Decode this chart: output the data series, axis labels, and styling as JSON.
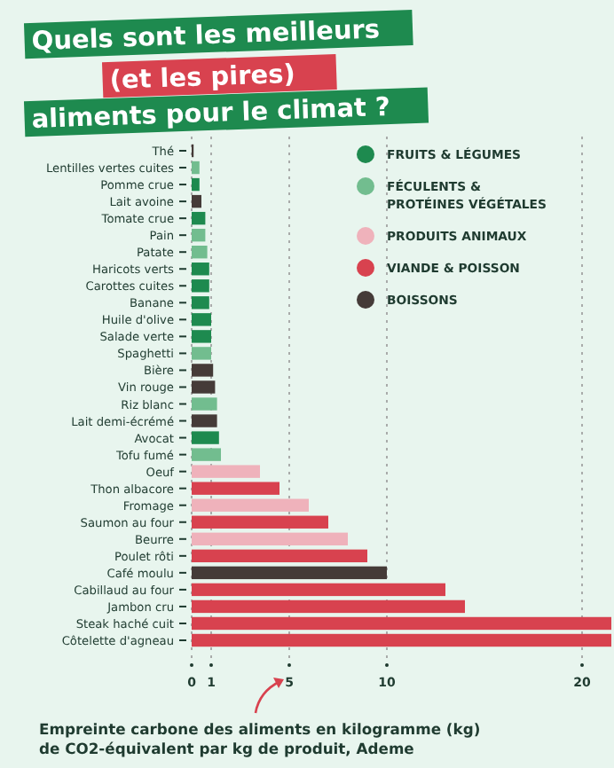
{
  "chart_data": {
    "type": "bar",
    "orientation": "horizontal",
    "title": "Quels sont les meilleurs (et les pires) aliments pour le climat ?",
    "xlabel": "Empreinte carbone des aliments en kilogramme (kg) de CO2-équivalent par kg de produit, Ademe",
    "categories": [
      "Thé",
      "Lentilles vertes cuites",
      "Pomme crue",
      "Lait avoine",
      "Tomate crue",
      "Pain",
      "Patate",
      "Haricots verts",
      "Carottes cuites",
      "Banane",
      "Huile d'olive",
      "Salade verte",
      "Spaghetti",
      "Bière",
      "Vin rouge",
      "Riz blanc",
      "Lait demi-écrémé",
      "Avocat",
      "Tofu fumé",
      "Oeuf",
      "Thon albacore",
      "Fromage",
      "Saumon au four",
      "Beurre",
      "Poulet rôti",
      "Café moulu",
      "Cabillaud au four",
      "Jambon cru",
      "Steak haché cuit",
      "Côtelette d'agneau"
    ],
    "series": [
      {
        "name": "FRUITS & LÉGUMES",
        "color": "#1e8a4f",
        "values": [
          null,
          null,
          0.4,
          null,
          0.7,
          null,
          null,
          0.9,
          0.9,
          0.9,
          1.0,
          1.0,
          null,
          null,
          null,
          null,
          null,
          1.4,
          null,
          null,
          null,
          null,
          null,
          null,
          null,
          null,
          null,
          null,
          null,
          null
        ]
      },
      {
        "name": "FÉCULENTS & PROTÉINES VÉGÉTALES",
        "color": "#72bd8f",
        "values": [
          null,
          0.4,
          null,
          null,
          null,
          0.7,
          0.8,
          null,
          null,
          null,
          null,
          null,
          1.0,
          null,
          null,
          1.3,
          null,
          null,
          1.5,
          null,
          null,
          null,
          null,
          null,
          null,
          null,
          null,
          null,
          null,
          null
        ]
      },
      {
        "name": "PRODUITS ANIMAUX",
        "color": "#efb2bb",
        "values": [
          null,
          null,
          null,
          null,
          null,
          null,
          null,
          null,
          null,
          null,
          null,
          null,
          null,
          null,
          null,
          null,
          null,
          null,
          null,
          3.5,
          null,
          6.0,
          null,
          8.0,
          null,
          null,
          null,
          null,
          null,
          null
        ]
      },
      {
        "name": "VIANDE & POISSON",
        "color": "#d8424f",
        "values": [
          null,
          null,
          null,
          null,
          null,
          null,
          null,
          null,
          null,
          null,
          null,
          null,
          null,
          null,
          null,
          null,
          null,
          null,
          null,
          null,
          4.5,
          null,
          7.0,
          null,
          9.0,
          null,
          13.0,
          14.0,
          21.5,
          21.5
        ]
      },
      {
        "name": "BOISSONS",
        "color": "#453b38",
        "values": [
          0.1,
          null,
          null,
          0.5,
          null,
          null,
          null,
          null,
          null,
          null,
          null,
          null,
          null,
          1.1,
          1.2,
          null,
          1.3,
          null,
          null,
          null,
          null,
          null,
          null,
          null,
          null,
          10.0,
          null,
          null,
          null,
          null
        ]
      }
    ],
    "xlim": [
      0,
      21.5
    ],
    "xticks": [
      0,
      1,
      5,
      10,
      20
    ],
    "grid": "x",
    "legend": "top right"
  }
}
